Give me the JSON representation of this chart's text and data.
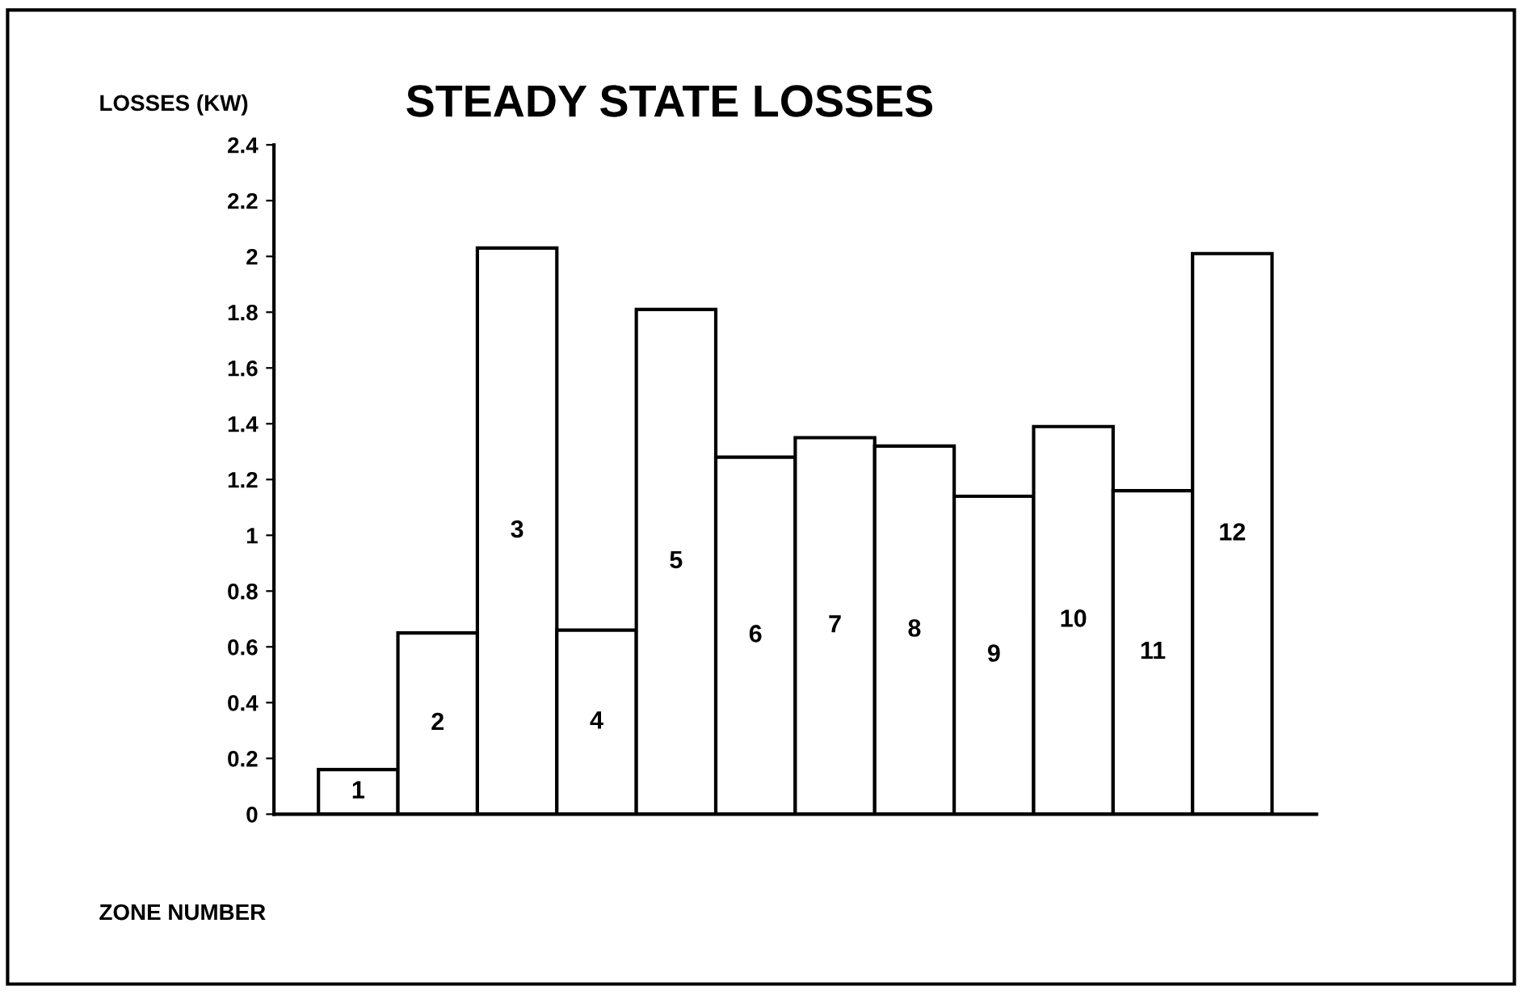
{
  "chart_data": {
    "type": "bar",
    "title": "STEADY STATE LOSSES",
    "ylabel": "LOSSES (KW)",
    "xlabel": "ZONE NUMBER",
    "categories": [
      "1",
      "2",
      "3",
      "4",
      "5",
      "6",
      "7",
      "8",
      "9",
      "10",
      "11",
      "12"
    ],
    "series": [
      {
        "color": "#ffffff",
        "values": [
          0.16,
          0.65,
          2.03,
          0.66,
          1.81,
          1.28,
          1.35,
          1.32,
          1.14,
          1.39,
          1.16,
          2.01
        ]
      }
    ],
    "ylim": [
      0,
      2.4
    ],
    "yticks": [
      0,
      0.2,
      0.4,
      0.6,
      0.8,
      1,
      1.2,
      1.4,
      1.6,
      1.8,
      2,
      2.2,
      2.4
    ],
    "grid": false,
    "legend": false
  }
}
